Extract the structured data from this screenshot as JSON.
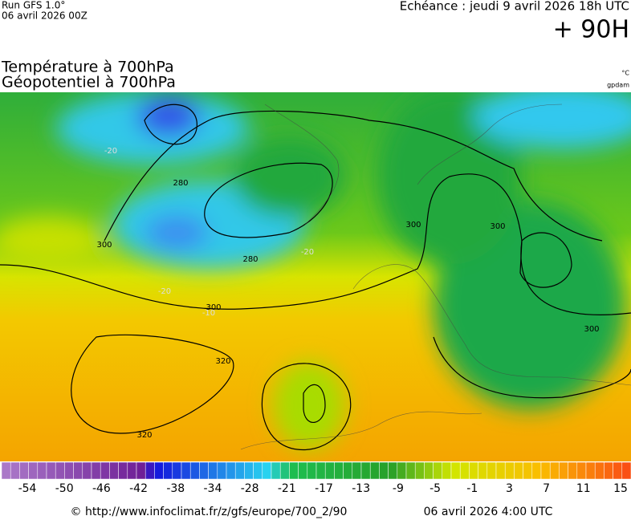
{
  "header": {
    "run": "Run GFS 1.0°",
    "run_date": "06 avril 2026 00Z",
    "echeance": "Echéance : jeudi 9 avril 2026 18h UTC",
    "lead": "+ 90H",
    "title_lines": [
      "Température à 700hPa",
      "Géopotentiel à 700hPa"
    ],
    "unit": "°C",
    "unit2": "gpdam"
  },
  "map": {
    "contour_labels": [
      "280",
      "280",
      "300",
      "300",
      "300",
      "300",
      "300",
      "320",
      "320",
      "-20",
      "-20",
      "-20",
      "-10"
    ]
  },
  "colorbar": {
    "labels": [
      "-54",
      "-50",
      "-46",
      "-42",
      "-38",
      "-34",
      "-28",
      "-21",
      "-17",
      "-13",
      "-9",
      "-5",
      "-1",
      "3",
      "7",
      "11",
      "15"
    ]
  },
  "footer": {
    "url": "© http://www.infoclimat.fr/z/gfs/europe/700_2/90",
    "date": "06 avril 2026  4:00 UTC"
  }
}
